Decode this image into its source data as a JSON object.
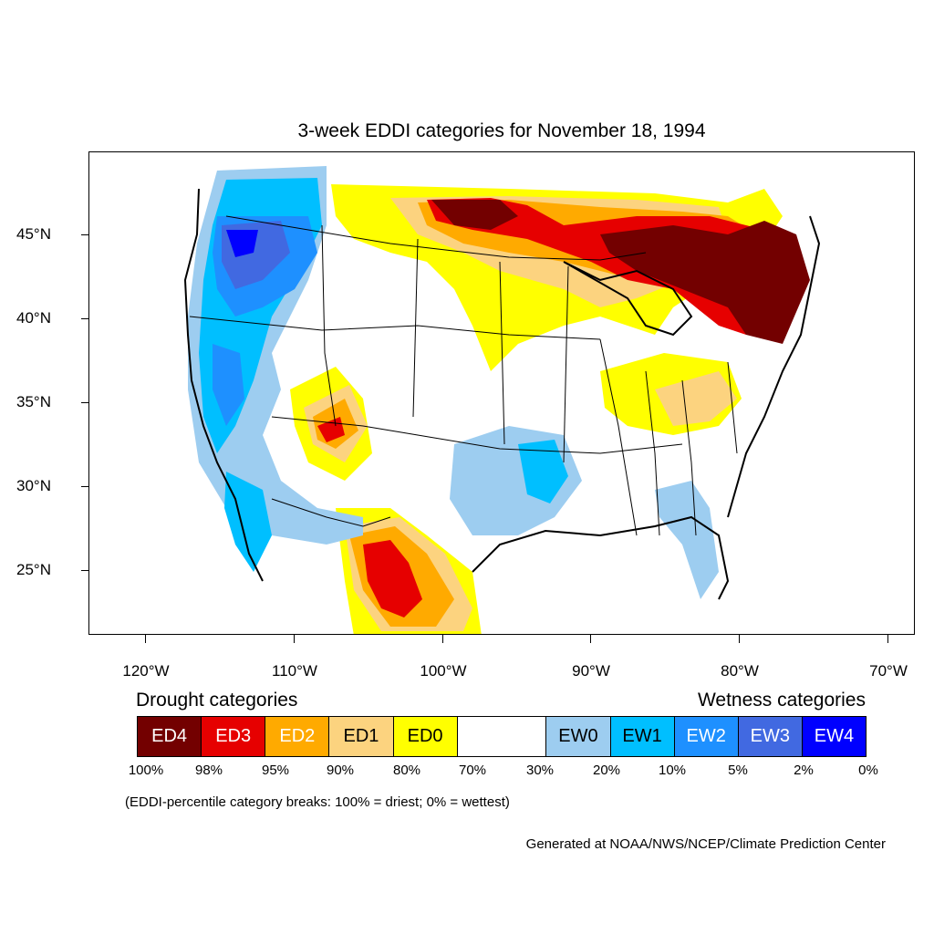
{
  "title": "3-week EDDI categories for November 18, 1994",
  "lat_labels": [
    "45°N",
    "40°N",
    "35°N",
    "30°N",
    "25°N"
  ],
  "lon_labels": [
    "120°W",
    "110°W",
    "100°W",
    "90°W",
    "80°W",
    "70°W"
  ],
  "legend": {
    "drought_title": "Drought categories",
    "wetness_title": "Wetness categories",
    "categories": [
      {
        "label": "ED4",
        "color": "#730000",
        "text_color": "#ffffff"
      },
      {
        "label": "ED3",
        "color": "#e60000",
        "text_color": "#ffffff"
      },
      {
        "label": "ED2",
        "color": "#ffaa00",
        "text_color": "#ffffff"
      },
      {
        "label": "ED1",
        "color": "#fcd37f",
        "text_color": "#000000"
      },
      {
        "label": "ED0",
        "color": "#ffff00",
        "text_color": "#000000"
      },
      {
        "label": "",
        "color": "#ffffff",
        "text_color": "#000000"
      },
      {
        "label": "EW0",
        "color": "#9dcdf0",
        "text_color": "#000000"
      },
      {
        "label": "EW1",
        "color": "#00bfff",
        "text_color": "#000000"
      },
      {
        "label": "EW2",
        "color": "#1e90ff",
        "text_color": "#ffffff"
      },
      {
        "label": "EW3",
        "color": "#4169e1",
        "text_color": "#ffffff"
      },
      {
        "label": "EW4",
        "color": "#0000ff",
        "text_color": "#ffffff"
      }
    ],
    "percentiles": [
      "100%",
      "98%",
      "95%",
      "90%",
      "80%",
      "70%",
      "30%",
      "20%",
      "10%",
      "5%",
      "2%",
      "0%"
    ]
  },
  "note": "(EDDI-percentile category breaks: 100% = driest; 0% = wettest)",
  "credit": "Generated at NOAA/NWS/NCEP/Climate Prediction Center"
}
